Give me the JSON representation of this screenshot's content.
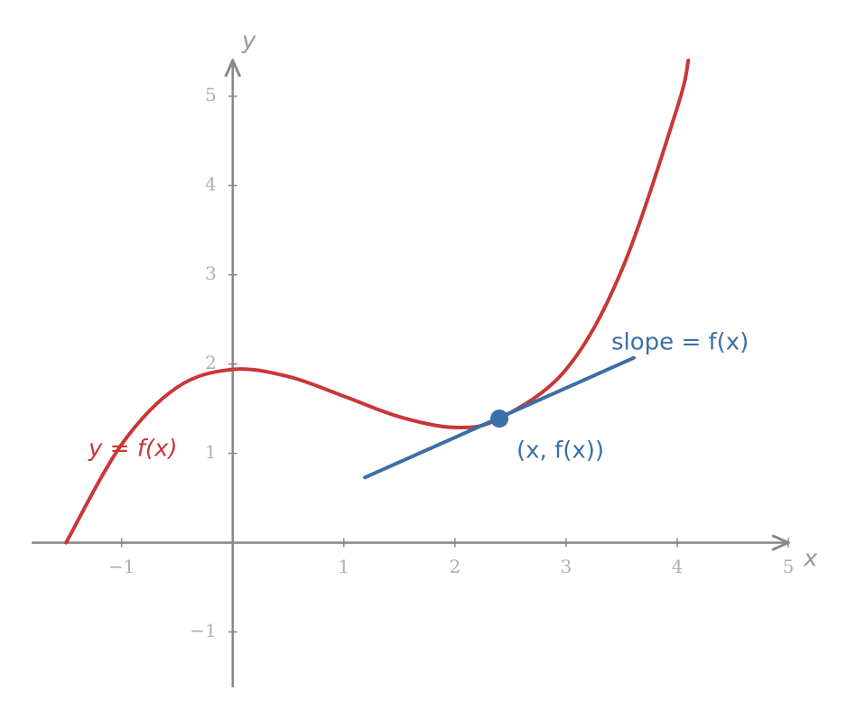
{
  "chart_data": {
    "type": "line",
    "xlabel": "x",
    "ylabel": "y",
    "xlim": [
      -1.81,
      5
    ],
    "ylim": [
      -1.62,
      5.4
    ],
    "xticks": [
      {
        "value": -1,
        "label": "−1"
      },
      1,
      2,
      3,
      4,
      5
    ],
    "yticks": [
      {
        "value": -1,
        "label": "−1"
      },
      1,
      2,
      3,
      4,
      5
    ],
    "series": [
      {
        "name": "y = f(x)",
        "color": "#c83737",
        "x": [
          -1.5,
          -1,
          -0.5,
          0,
          0.5,
          1,
          1.5,
          2,
          2.4,
          3,
          3.5,
          4,
          4.1
        ],
        "values": [
          0,
          1.1,
          1.74,
          1.94,
          1.86,
          1.64,
          1.41,
          1.29,
          1.39,
          1.94,
          3.05,
          4.87,
          5.4
        ]
      },
      {
        "name": "slope = f(x)",
        "color": "#3a6fa8",
        "x": [
          1.19,
          3.61
        ],
        "values": [
          0.73,
          2.07
        ]
      }
    ],
    "point": {
      "label": "(x, f(x))",
      "x": 2.4,
      "y": 1.39,
      "color": "#3a6fa8"
    }
  }
}
